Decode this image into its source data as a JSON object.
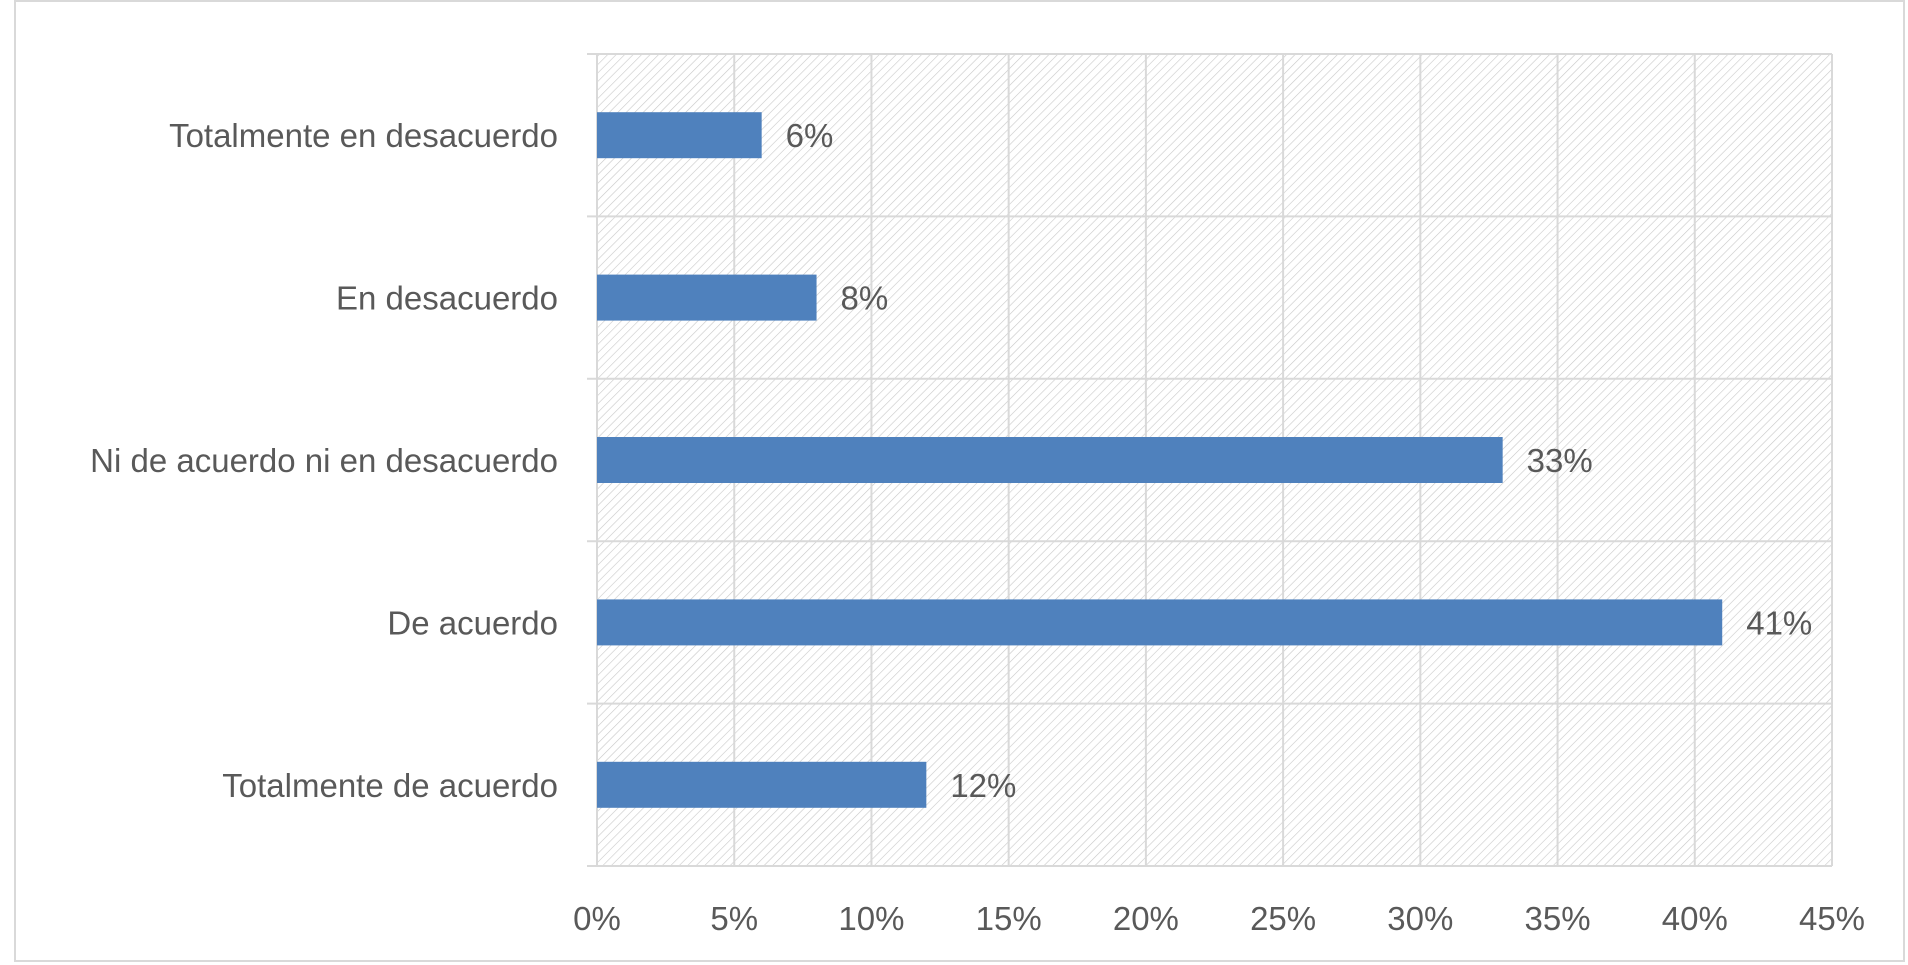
{
  "chart_data": {
    "type": "bar",
    "orientation": "horizontal",
    "title": "",
    "xlabel": "",
    "ylabel": "",
    "categories": [
      "Totalmente en desacuerdo",
      "En desacuerdo",
      "Ni de acuerdo ni en desacuerdo",
      "De acuerdo",
      "Totalmente de acuerdo"
    ],
    "values": [
      6,
      8,
      33,
      41,
      12
    ],
    "data_labels": [
      "6%",
      "8%",
      "33%",
      "41%",
      "12%"
    ],
    "xlim": [
      0,
      45
    ],
    "ticks": [
      0,
      5,
      10,
      15,
      20,
      25,
      30,
      35,
      40,
      45
    ],
    "tick_labels": [
      "0%",
      "5%",
      "10%",
      "15%",
      "20%",
      "25%",
      "30%",
      "35%",
      "40%",
      "45%"
    ],
    "grid": true,
    "legend": "none",
    "colors": {
      "bar": "#4f81bd",
      "grid": "#d9d9d9",
      "hatch": "#bfbfbf",
      "text": "#595959"
    }
  }
}
